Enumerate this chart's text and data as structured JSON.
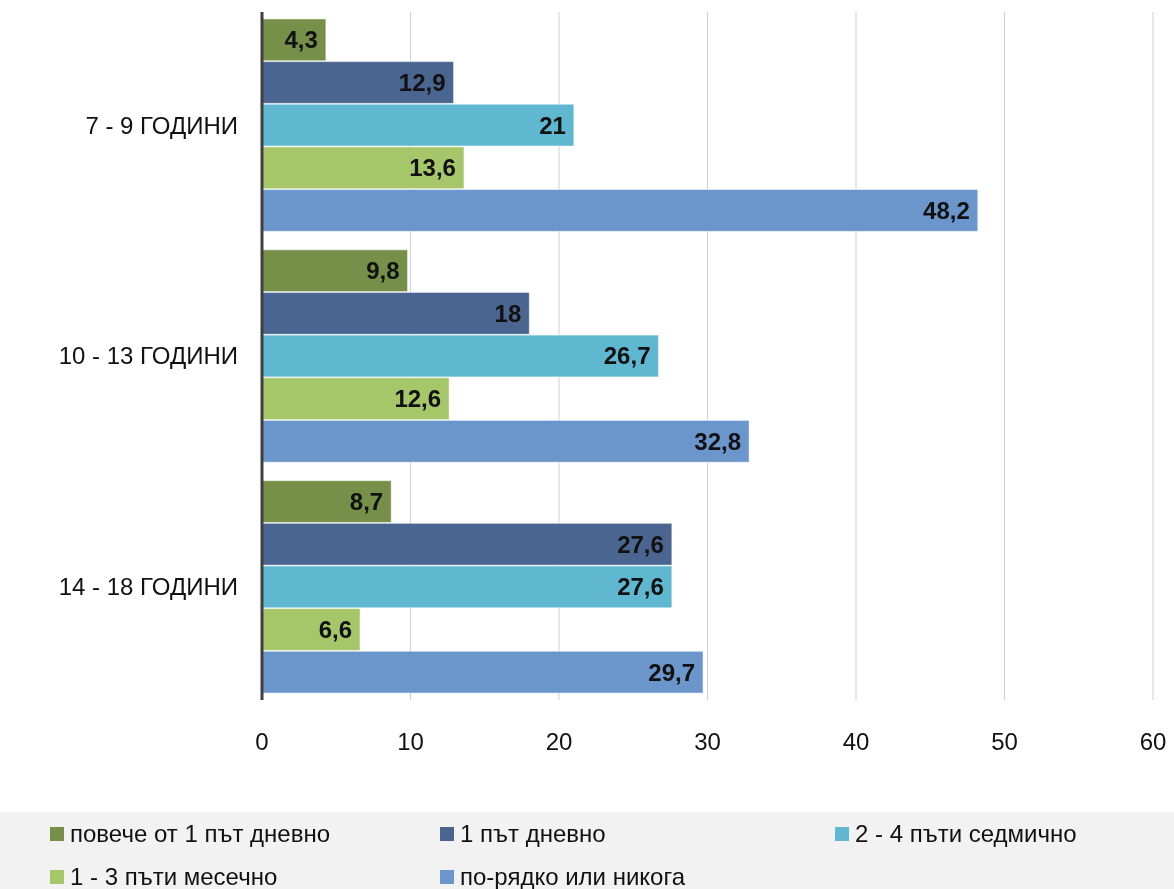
{
  "chart_data": {
    "type": "bar",
    "orientation": "horizontal",
    "categories": [
      "7 - 9 ГОДИНИ",
      "10 - 13 ГОДИНИ",
      "14 - 18 ГОДИНИ"
    ],
    "series": [
      {
        "name": "повече от 1 път дневно",
        "color": "#76904a",
        "values": [
          4.3,
          9.8,
          8.7
        ],
        "value_labels": [
          "4,3",
          "9,8",
          "8,7"
        ]
      },
      {
        "name": "1 път дневно",
        "color": "#4a6690",
        "values": [
          12.9,
          18,
          27.6
        ],
        "value_labels": [
          "12,9",
          "18",
          "27,6"
        ]
      },
      {
        "name": "2 - 4 пъти седмично",
        "color": "#5fb8cf",
        "values": [
          21,
          26.7,
          27.6
        ],
        "value_labels": [
          "21",
          "26,7",
          "27,6"
        ]
      },
      {
        "name": "1 - 3 пъти месечно",
        "color": "#a6c66a",
        "values": [
          13.6,
          12.6,
          6.6
        ],
        "value_labels": [
          "13,6",
          "12,6",
          "6,6"
        ]
      },
      {
        "name": "по-рядко или никога",
        "color": "#6a96cc",
        "values": [
          48.2,
          32.8,
          29.7
        ],
        "value_labels": [
          "48,2",
          "32,8",
          "29,7"
        ]
      }
    ],
    "xlim": [
      0,
      60
    ],
    "xticks": [
      0,
      10,
      20,
      30,
      40,
      50,
      60
    ],
    "grid": "x",
    "legend": "bottom"
  }
}
